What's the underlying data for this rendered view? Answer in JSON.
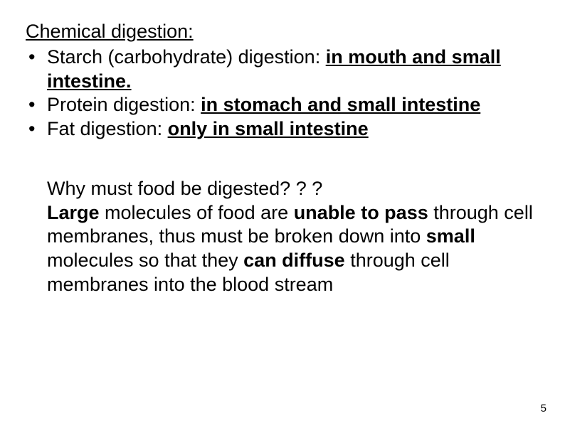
{
  "heading": "Chemical digestion:",
  "bullets": [
    {
      "prefix": "Starch (carbohydrate) digestion: ",
      "bold": "in mouth and small intestine."
    },
    {
      "prefix": "Protein digestion: ",
      "bold": "in stomach and small intestine"
    },
    {
      "prefix": "Fat digestion: ",
      "bold": "only in small intestine"
    }
  ],
  "question": "Why must food be digested? ? ?",
  "para": {
    "p1": "Large",
    "p2": " molecules of food are ",
    "p3": "unable to pass",
    "p4": " through cell membranes, thus must be broken down into ",
    "p5": "small",
    "p6": " molecules so that they ",
    "p7": "can diffuse",
    "p8": " through cell membranes into the blood stream"
  },
  "pageNumber": "5",
  "colors": {
    "text": "#000000",
    "background": "#ffffff"
  },
  "typography": {
    "body_fontsize_pt": 20,
    "pagenum_fontsize_pt": 11,
    "font_family": "Arial"
  }
}
